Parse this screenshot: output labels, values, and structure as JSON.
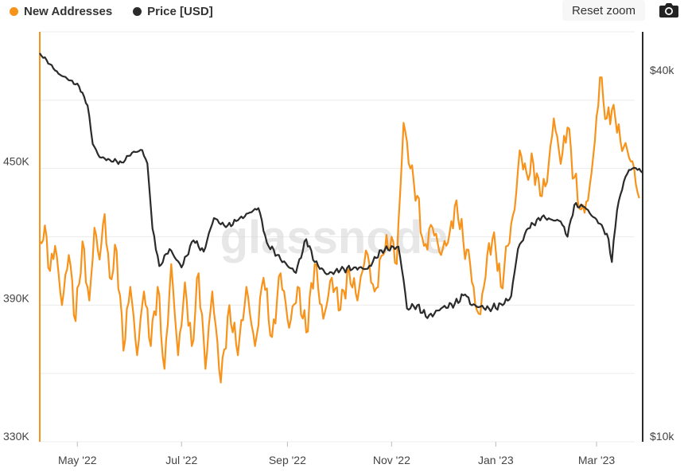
{
  "legend": {
    "new_addresses": "New Addresses",
    "price": "Price [USD]"
  },
  "controls": {
    "reset_zoom": "Reset zoom",
    "camera_icon": "camera-icon"
  },
  "watermark": "glassnode",
  "colors": {
    "new_addresses": "#f7931a",
    "price": "#2b2b2b",
    "grid": "#ececec"
  },
  "chart_data": {
    "type": "line",
    "title": "",
    "xlabel": "",
    "x_ticks": [
      "May '22",
      "Jul '22",
      "Sep '22",
      "Nov '22",
      "Jan '23",
      "Mar '23"
    ],
    "x_range": [
      "2022-04-09",
      "2023-03-28"
    ],
    "y_left": {
      "label": "",
      "ticks": [
        "330K",
        "390K",
        "450K"
      ],
      "range": [
        330000,
        510000
      ]
    },
    "y_right": {
      "label": "",
      "ticks": [
        "$10k",
        "$40k"
      ],
      "range": [
        10000,
        47500
      ],
      "scale": "log"
    },
    "grid": true,
    "legend_position": "top-left",
    "series": [
      {
        "name": "New Addresses",
        "axis": "left",
        "color": "#f7931a",
        "points": [
          [
            "2022-04-09",
            418000
          ],
          [
            "2022-04-12",
            425000
          ],
          [
            "2022-04-15",
            405000
          ],
          [
            "2022-04-18",
            416000
          ],
          [
            "2022-04-22",
            390000
          ],
          [
            "2022-04-26",
            412000
          ],
          [
            "2022-04-30",
            383000
          ],
          [
            "2022-05-04",
            418000
          ],
          [
            "2022-05-08",
            392000
          ],
          [
            "2022-05-11",
            424000
          ],
          [
            "2022-05-14",
            410000
          ],
          [
            "2022-05-17",
            430000
          ],
          [
            "2022-05-20",
            402000
          ],
          [
            "2022-05-24",
            414000
          ],
          [
            "2022-05-28",
            370000
          ],
          [
            "2022-06-01",
            398000
          ],
          [
            "2022-06-05",
            368000
          ],
          [
            "2022-06-09",
            396000
          ],
          [
            "2022-06-13",
            372000
          ],
          [
            "2022-06-17",
            398000
          ],
          [
            "2022-06-21",
            362000
          ],
          [
            "2022-06-25",
            408000
          ],
          [
            "2022-06-29",
            368000
          ],
          [
            "2022-07-03",
            400000
          ],
          [
            "2022-07-07",
            372000
          ],
          [
            "2022-07-11",
            404000
          ],
          [
            "2022-07-15",
            362000
          ],
          [
            "2022-07-19",
            396000
          ],
          [
            "2022-07-24",
            356000
          ],
          [
            "2022-07-29",
            390000
          ],
          [
            "2022-08-03",
            368000
          ],
          [
            "2022-08-08",
            398000
          ],
          [
            "2022-08-13",
            372000
          ],
          [
            "2022-08-18",
            402000
          ],
          [
            "2022-08-23",
            376000
          ],
          [
            "2022-08-28",
            404000
          ],
          [
            "2022-09-02",
            380000
          ],
          [
            "2022-09-07",
            398000
          ],
          [
            "2022-09-12",
            378000
          ],
          [
            "2022-09-17",
            408000
          ],
          [
            "2022-09-22",
            384000
          ],
          [
            "2022-09-27",
            402000
          ],
          [
            "2022-10-02",
            388000
          ],
          [
            "2022-10-07",
            406000
          ],
          [
            "2022-10-12",
            392000
          ],
          [
            "2022-10-17",
            414000
          ],
          [
            "2022-10-22",
            396000
          ],
          [
            "2022-10-27",
            412000
          ],
          [
            "2022-11-01",
            420000
          ],
          [
            "2022-11-04",
            408000
          ],
          [
            "2022-11-08",
            470000
          ],
          [
            "2022-11-12",
            450000
          ],
          [
            "2022-11-16",
            438000
          ],
          [
            "2022-11-20",
            416000
          ],
          [
            "2022-11-25",
            424000
          ],
          [
            "2022-11-30",
            412000
          ],
          [
            "2022-12-05",
            422000
          ],
          [
            "2022-12-09",
            436000
          ],
          [
            "2022-12-13",
            418000
          ],
          [
            "2022-12-17",
            408000
          ],
          [
            "2022-12-20",
            390000
          ],
          [
            "2022-12-23",
            386000
          ],
          [
            "2022-12-27",
            412000
          ],
          [
            "2022-12-31",
            422000
          ],
          [
            "2023-01-04",
            398000
          ],
          [
            "2023-01-08",
            416000
          ],
          [
            "2023-01-12",
            432000
          ],
          [
            "2023-01-15",
            458000
          ],
          [
            "2023-01-19",
            448000
          ],
          [
            "2023-01-23",
            452000
          ],
          [
            "2023-01-27",
            438000
          ],
          [
            "2023-01-31",
            444000
          ],
          [
            "2023-02-04",
            472000
          ],
          [
            "2023-02-08",
            452000
          ],
          [
            "2023-02-12",
            468000
          ],
          [
            "2023-02-16",
            446000
          ],
          [
            "2023-02-20",
            432000
          ],
          [
            "2023-02-24",
            436000
          ],
          [
            "2023-02-28",
            462000
          ],
          [
            "2023-03-03",
            490000
          ],
          [
            "2023-03-07",
            472000
          ],
          [
            "2023-03-11",
            478000
          ],
          [
            "2023-03-15",
            462000
          ],
          [
            "2023-03-19",
            458000
          ],
          [
            "2023-03-23",
            450000
          ],
          [
            "2023-03-26",
            437000
          ]
        ]
      },
      {
        "name": "Price [USD]",
        "axis": "right",
        "color": "#2b2b2b",
        "points": [
          [
            "2022-04-09",
            43800
          ],
          [
            "2022-04-15",
            42000
          ],
          [
            "2022-04-20",
            40500
          ],
          [
            "2022-04-27",
            39500
          ],
          [
            "2022-05-02",
            38600
          ],
          [
            "2022-05-07",
            35900
          ],
          [
            "2022-05-10",
            31000
          ],
          [
            "2022-05-14",
            29500
          ],
          [
            "2022-05-20",
            29200
          ],
          [
            "2022-05-27",
            28900
          ],
          [
            "2022-06-02",
            30000
          ],
          [
            "2022-06-08",
            30300
          ],
          [
            "2022-06-11",
            28800
          ],
          [
            "2022-06-14",
            22500
          ],
          [
            "2022-06-18",
            19500
          ],
          [
            "2022-06-24",
            20800
          ],
          [
            "2022-07-01",
            19400
          ],
          [
            "2022-07-08",
            21500
          ],
          [
            "2022-07-14",
            20600
          ],
          [
            "2022-07-20",
            23400
          ],
          [
            "2022-07-27",
            22600
          ],
          [
            "2022-08-03",
            23200
          ],
          [
            "2022-08-10",
            23900
          ],
          [
            "2022-08-15",
            24300
          ],
          [
            "2022-08-20",
            21300
          ],
          [
            "2022-08-28",
            20000
          ],
          [
            "2022-09-06",
            19000
          ],
          [
            "2022-09-12",
            21600
          ],
          [
            "2022-09-17",
            19800
          ],
          [
            "2022-09-24",
            18900
          ],
          [
            "2022-10-02",
            19200
          ],
          [
            "2022-10-10",
            19400
          ],
          [
            "2022-10-18",
            19300
          ],
          [
            "2022-10-26",
            20700
          ],
          [
            "2022-11-05",
            21000
          ],
          [
            "2022-11-08",
            18500
          ],
          [
            "2022-11-10",
            16600
          ],
          [
            "2022-11-16",
            16800
          ],
          [
            "2022-11-22",
            16000
          ],
          [
            "2022-11-30",
            16600
          ],
          [
            "2022-12-08",
            16900
          ],
          [
            "2022-12-14",
            17500
          ],
          [
            "2022-12-18",
            16800
          ],
          [
            "2022-12-28",
            16600
          ],
          [
            "2023-01-05",
            16800
          ],
          [
            "2023-01-10",
            17400
          ],
          [
            "2023-01-14",
            20800
          ],
          [
            "2023-01-20",
            22500
          ],
          [
            "2023-01-28",
            23500
          ],
          [
            "2023-02-02",
            23300
          ],
          [
            "2023-02-08",
            23100
          ],
          [
            "2023-02-12",
            21800
          ],
          [
            "2023-02-16",
            24600
          ],
          [
            "2023-02-22",
            24400
          ],
          [
            "2023-02-27",
            23500
          ],
          [
            "2023-03-04",
            22800
          ],
          [
            "2023-03-08",
            21600
          ],
          [
            "2023-03-10",
            19800
          ],
          [
            "2023-03-13",
            24100
          ],
          [
            "2023-03-17",
            26900
          ],
          [
            "2023-03-20",
            28100
          ],
          [
            "2023-03-24",
            28300
          ],
          [
            "2023-03-28",
            27800
          ]
        ]
      }
    ]
  }
}
